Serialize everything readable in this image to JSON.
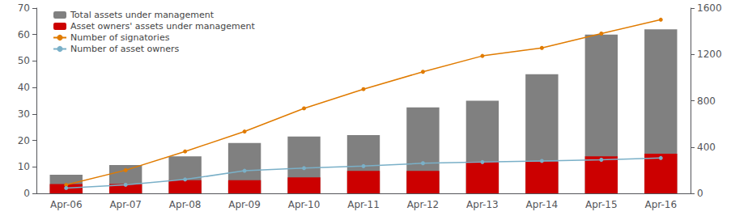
{
  "chart_data": {
    "type": "bar",
    "categories": [
      "Apr-06",
      "Apr-07",
      "Apr-08",
      "Apr-09",
      "Apr-10",
      "Apr-11",
      "Apr-12",
      "Apr-13",
      "Apr-14",
      "Apr-15",
      "Apr-16"
    ],
    "series": [
      {
        "name": "Total assets under management",
        "type": "bar",
        "color": "#808080",
        "values": [
          7.0,
          10.7,
          14.0,
          19.0,
          21.5,
          22.0,
          32.5,
          35.0,
          45.0,
          60.0,
          62.0
        ]
      },
      {
        "name": "Asset owners' assets under management",
        "type": "bar",
        "color": "#cc0000",
        "values": [
          3.5,
          3.5,
          5.0,
          5.0,
          6.0,
          8.5,
          8.5,
          12.0,
          12.0,
          14.0,
          15.0
        ]
      },
      {
        "name": "Number of signatories",
        "type": "line",
        "axis": "y2",
        "color": "#e07b00",
        "marker": "circle",
        "values": [
          73,
          200,
          362,
          534,
          734,
          900,
          1050,
          1187,
          1256,
          1380,
          1500
        ]
      },
      {
        "name": "Number of asset owners",
        "type": "line",
        "axis": "y2",
        "color": "#7ab0c8",
        "marker": "circle",
        "values": [
          46,
          74,
          120,
          195,
          218,
          235,
          260,
          270,
          280,
          290,
          305
        ]
      }
    ],
    "stacked": false,
    "ylim": [
      0,
      70
    ],
    "yticks": [
      0,
      10,
      20,
      30,
      40,
      50,
      60,
      70
    ],
    "y2lim": [
      0,
      1600
    ],
    "y2ticks": [
      0,
      400,
      800,
      1200,
      1600
    ],
    "grid": false,
    "legend": "upper left"
  }
}
